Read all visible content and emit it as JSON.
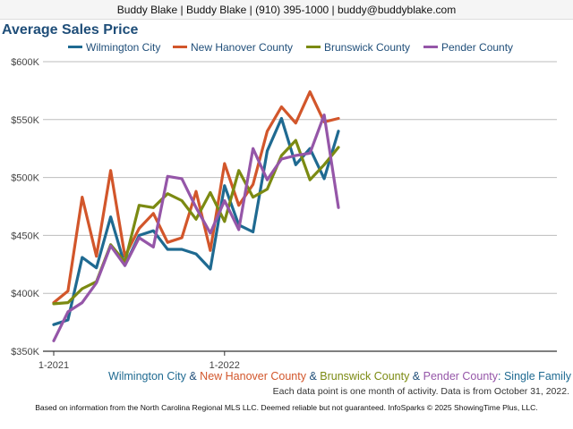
{
  "header": {
    "contact": "Buddy Blake | Buddy Blake | (910) 395-1000 | buddy@buddyblake.com"
  },
  "chart_data": {
    "type": "line",
    "title": "Average Sales Price",
    "xlabel": "",
    "ylabel": "",
    "ylim": [
      350000,
      600000
    ],
    "y_ticks": [
      350000,
      400000,
      450000,
      500000,
      550000,
      600000
    ],
    "y_tick_labels": [
      "$350K",
      "$400K",
      "$450K",
      "$500K",
      "$550K",
      "$600K"
    ],
    "x_tick_labels": [
      "1-2021",
      "1-2022"
    ],
    "x": [
      "1-2021",
      "2-2021",
      "3-2021",
      "4-2021",
      "5-2021",
      "6-2021",
      "7-2021",
      "8-2021",
      "9-2021",
      "10-2021",
      "11-2021",
      "12-2021",
      "1-2022",
      "2-2022",
      "3-2022",
      "4-2022",
      "5-2022",
      "6-2022",
      "7-2022",
      "8-2022",
      "9-2022",
      "10-2022"
    ],
    "grid": true,
    "legend_position": "top",
    "series": [
      {
        "name": "Wilmington City",
        "color": "#1f6a91",
        "values": [
          373000,
          377000,
          431000,
          422000,
          466000,
          424000,
          450000,
          454000,
          438000,
          438000,
          434000,
          421000,
          493000,
          459000,
          453000,
          523000,
          551000,
          511000,
          525000,
          499000,
          540000,
          null
        ]
      },
      {
        "name": "New Hanover County",
        "color": "#d2562b",
        "values": [
          392000,
          402000,
          483000,
          432000,
          506000,
          432000,
          456000,
          469000,
          444000,
          448000,
          488000,
          437000,
          512000,
          476000,
          494000,
          540000,
          561000,
          547000,
          574000,
          548000,
          551000,
          null
        ]
      },
      {
        "name": "Brunswick County",
        "color": "#7b8a12",
        "values": [
          391000,
          392000,
          404000,
          410000,
          442000,
          427000,
          476000,
          474000,
          486000,
          480000,
          464000,
          487000,
          462000,
          506000,
          483000,
          490000,
          519000,
          532000,
          498000,
          511000,
          526000,
          null
        ]
      },
      {
        "name": "Pender County",
        "color": "#9556a8",
        "values": [
          359000,
          384000,
          392000,
          409000,
          441000,
          424000,
          448000,
          440000,
          501000,
          499000,
          474000,
          452000,
          480000,
          455000,
          525000,
          498000,
          516000,
          519000,
          521000,
          554000,
          474000,
          null
        ]
      }
    ]
  },
  "subtitle": {
    "parts": [
      {
        "text": "Wilmington City",
        "color": "#1f6a91"
      },
      {
        "text": " & ",
        "color": "#1f4e79"
      },
      {
        "text": "New Hanover County",
        "color": "#d2562b"
      },
      {
        "text": " & ",
        "color": "#1f4e79"
      },
      {
        "text": "Brunswick County",
        "color": "#7b8a12"
      },
      {
        "text": " & ",
        "color": "#1f4e79"
      },
      {
        "text": "Pender County",
        "color": "#9556a8"
      },
      {
        "text": ": Single Family",
        "color": "#1f6a91"
      }
    ]
  },
  "note": "Each data point is one month of activity. Data is from October 31, 2022.",
  "footer": "Based on information from the North Carolina Regional MLS LLC. Deemed reliable but not guaranteed. InfoSparks © 2025 ShowingTime Plus, LLC."
}
